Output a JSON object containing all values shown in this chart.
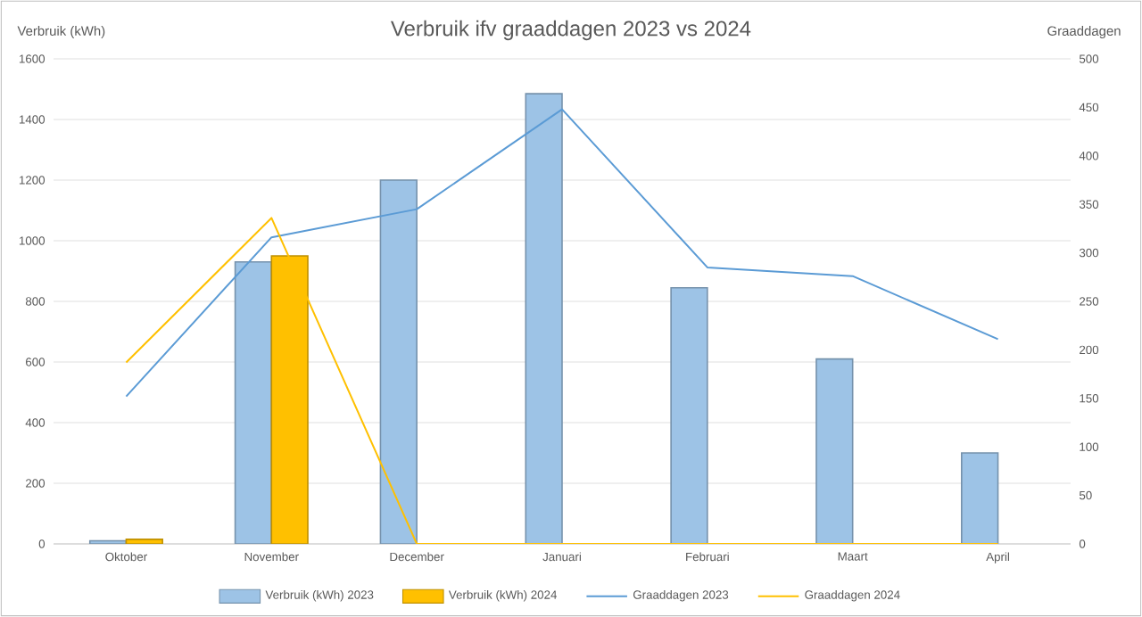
{
  "chart_data": {
    "type": "bar",
    "title": "Verbruik ifv graaddagen 2023 vs 2024",
    "ylabel": "Verbruik (kWh)",
    "y2label": "Graaddagen",
    "categories": [
      "Oktober",
      "November",
      "December",
      "Januari",
      "Februari",
      "Maart",
      "April"
    ],
    "series": [
      {
        "name": "Verbruik (kWh) 2023",
        "color": "#9dc3e6",
        "values": [
          10,
          930,
          1200,
          1485,
          845,
          610,
          300
        ]
      },
      {
        "name": "Verbruik (kWh) 2024",
        "color": "#ffc000",
        "values": [
          15,
          950,
          null,
          null,
          null,
          null,
          null
        ]
      },
      {
        "name": "Graaddagen 2023",
        "type": "line",
        "axis": "y2",
        "color": "#5b9bd5",
        "values": [
          152,
          316,
          345,
          448,
          285,
          276,
          211
        ]
      },
      {
        "name": "Graaddagen 2024",
        "type": "line",
        "axis": "y2",
        "color": "#ffc000",
        "values": [
          187,
          336,
          0,
          0,
          0,
          0,
          0
        ]
      }
    ],
    "ylim": [
      0,
      1600
    ],
    "yticks": [
      0,
      200,
      400,
      600,
      800,
      1000,
      1200,
      1400,
      1600
    ],
    "y2lim": [
      0,
      500
    ],
    "y2ticks": [
      0,
      50,
      100,
      150,
      200,
      250,
      300,
      350,
      400,
      450,
      500
    ],
    "grid": "y",
    "legend": "bottom"
  }
}
